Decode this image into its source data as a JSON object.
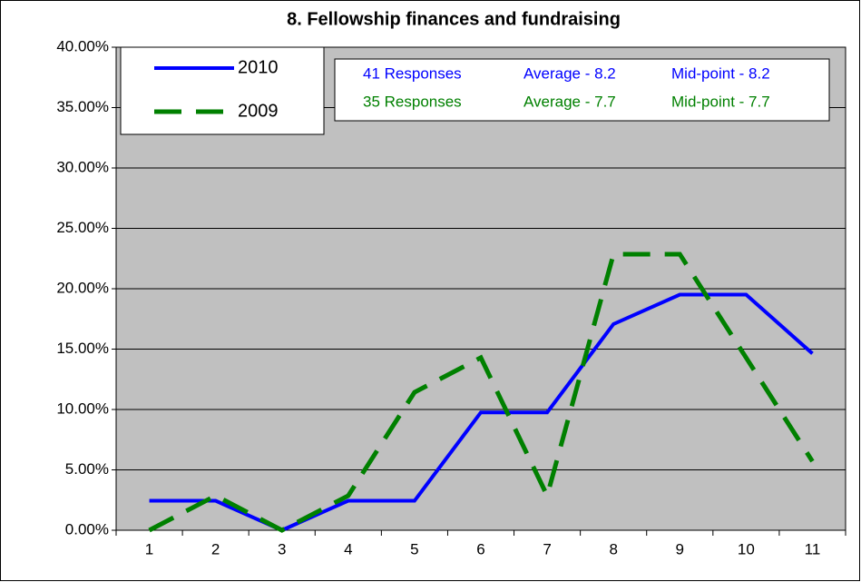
{
  "chart_data": {
    "type": "line",
    "title": "8. Fellowship finances and fundraising",
    "categories": [
      1,
      2,
      3,
      4,
      5,
      6,
      7,
      8,
      9,
      10,
      11
    ],
    "series": [
      {
        "name": "2010",
        "color": "#0000ff",
        "values": [
          2.44,
          2.44,
          0,
          2.44,
          2.44,
          9.76,
          9.76,
          17.07,
          19.51,
          19.51,
          14.63
        ]
      },
      {
        "name": "2009",
        "color": "#008000",
        "values": [
          0,
          2.86,
          0,
          2.86,
          11.43,
          14.29,
          2.86,
          22.86,
          22.86,
          14.29,
          5.71
        ]
      }
    ],
    "ylim": [
      0,
      40
    ],
    "yticks": [
      {
        "value": 0,
        "label": "0.00%"
      },
      {
        "value": 5,
        "label": "5.00%"
      },
      {
        "value": 10,
        "label": "10.00%"
      },
      {
        "value": 15,
        "label": "15.00%"
      },
      {
        "value": 20,
        "label": "20.00%"
      },
      {
        "value": 25,
        "label": "25.00%"
      },
      {
        "value": 30,
        "label": "30.00%"
      },
      {
        "value": 35,
        "label": "35.00%"
      },
      {
        "value": 40,
        "label": "40.00%"
      }
    ],
    "grid": true,
    "legend": "top-left",
    "annotations": [
      [
        "41 Responses",
        "Average - 8.2",
        "Mid-point - 8.2"
      ],
      [
        "35 Responses",
        "Average - 7.7",
        "Mid-point - 7.7"
      ]
    ]
  }
}
